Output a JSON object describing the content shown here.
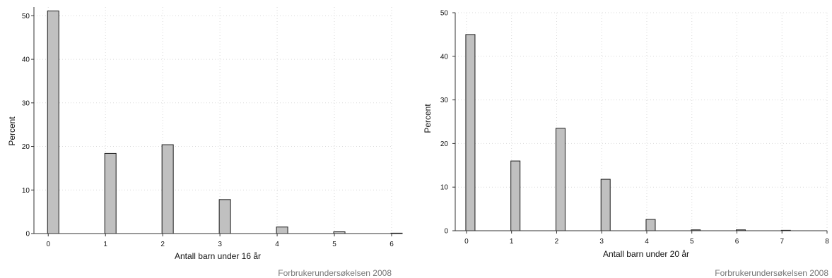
{
  "chart_data": [
    {
      "type": "bar",
      "title": "",
      "xlabel": "Antall barn under 16 år",
      "ylabel": "Percent",
      "source_note": "Forbrukerundersøkelsen 2008",
      "x": [
        0,
        1,
        2,
        3,
        4,
        5,
        6
      ],
      "values": [
        51.1,
        18.4,
        20.4,
        7.8,
        1.5,
        0.4,
        0.1
      ],
      "xlim": [
        -0.25,
        6
      ],
      "ylim": [
        0,
        52
      ],
      "xticks": [
        0,
        1,
        2,
        3,
        4,
        5,
        6
      ],
      "yticks": [
        0,
        10,
        20,
        30,
        40,
        50
      ],
      "grid": true,
      "bar_fill": "#c0c0c0",
      "bar_stroke": "#1a1a1a",
      "grid_color": "#d9d9d9"
    },
    {
      "type": "bar",
      "title": "",
      "xlabel": "Antall barn under 20 år",
      "ylabel": "Percent",
      "source_note": "Forbrukerundersøkelsen 2008",
      "x": [
        0,
        1,
        2,
        3,
        4,
        5,
        6,
        7
      ],
      "values": [
        45.0,
        16.0,
        23.5,
        11.8,
        2.6,
        0.2,
        0.2,
        0.1
      ],
      "xlim": [
        -0.25,
        8
      ],
      "ylim": [
        0,
        50
      ],
      "xticks": [
        0,
        1,
        2,
        3,
        4,
        5,
        6,
        7,
        8
      ],
      "yticks": [
        0,
        10,
        20,
        30,
        40,
        50
      ],
      "grid": true,
      "bar_fill": "#c0c0c0",
      "bar_stroke": "#1a1a1a",
      "grid_color": "#d9d9d9"
    }
  ]
}
